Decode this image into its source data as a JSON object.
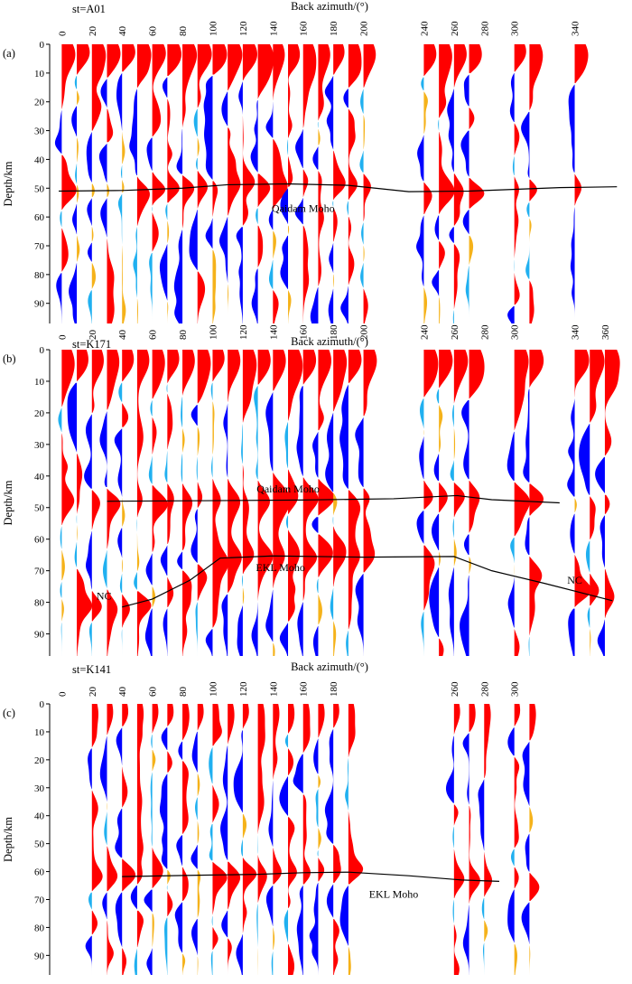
{
  "figure": {
    "xlabel": "Back azimuth/(°)",
    "ylabel": "Depth/km",
    "y_ticks": [
      0,
      10,
      20,
      30,
      40,
      50,
      60,
      70,
      80,
      90
    ],
    "colors": {
      "pos_strong": "#ff0000",
      "pos_weak": "#f5b21a",
      "neg_strong": "#0000ff",
      "neg_weak": "#20b0f0",
      "interface": "#000000",
      "frame": "#000000"
    }
  },
  "chart_data": [
    {
      "type": "receiver-function-section",
      "panel": "(a)",
      "station": "st=A01",
      "xlabel": "Back azimuth/(°)",
      "ylabel": "Depth/km",
      "xlim": [
        -8,
        372
      ],
      "ylim": [
        0,
        97
      ],
      "x_ticks": [
        0,
        20,
        40,
        60,
        80,
        100,
        120,
        140,
        160,
        180,
        200,
        240,
        260,
        280,
        300,
        340
      ],
      "y_ticks": [
        0,
        10,
        20,
        30,
        40,
        50,
        60,
        70,
        80,
        90
      ],
      "trace_azimuths": [
        0,
        10,
        20,
        30,
        40,
        50,
        60,
        70,
        80,
        90,
        100,
        110,
        120,
        130,
        140,
        150,
        160,
        170,
        180,
        190,
        200,
        240,
        250,
        260,
        270,
        300,
        310,
        340
      ],
      "interfaces": [
        {
          "label": "Qaidam Moho",
          "label_at": [
            160,
            57
          ],
          "points": [
            [
              -2,
              51
            ],
            [
              40,
              50.8
            ],
            [
              80,
              50
            ],
            [
              110,
              48.8
            ],
            [
              150,
              48.5
            ],
            [
              190,
              49
            ],
            [
              230,
              51.2
            ],
            [
              270,
              51
            ],
            [
              330,
              49.8
            ],
            [
              368,
              49.5
            ]
          ]
        }
      ]
    },
    {
      "type": "receiver-function-section",
      "panel": "(b)",
      "station": "st=K171",
      "xlabel": "Back azimuth/(°)",
      "ylabel": "Depth/km",
      "xlim": [
        -8,
        372
      ],
      "ylim": [
        0,
        97
      ],
      "x_ticks": [
        0,
        20,
        40,
        60,
        80,
        100,
        120,
        140,
        160,
        180,
        200,
        240,
        260,
        280,
        300,
        340,
        360
      ],
      "y_ticks": [
        0,
        10,
        20,
        30,
        40,
        50,
        60,
        70,
        80,
        90
      ],
      "trace_azimuths": [
        0,
        10,
        20,
        30,
        40,
        50,
        60,
        70,
        80,
        90,
        100,
        110,
        120,
        130,
        140,
        150,
        160,
        170,
        180,
        190,
        200,
        240,
        250,
        260,
        270,
        300,
        310,
        340,
        350,
        360
      ],
      "interfaces": [
        {
          "label": "Qaidam Moho",
          "label_at": [
            150,
            44
          ],
          "points": [
            [
              30,
              48
            ],
            [
              100,
              47.8
            ],
            [
              160,
              47.6
            ],
            [
              220,
              47.2
            ],
            [
              262,
              46.2
            ],
            [
              285,
              47.5
            ],
            [
              330,
              48.5
            ]
          ]
        },
        {
          "label": "EKL Moho",
          "label_at": [
            145,
            69
          ],
          "points": [
            [
              40,
              81.5
            ],
            [
              60,
              79
            ],
            [
              85,
              73
            ],
            [
              105,
              66
            ],
            [
              140,
              65.3
            ],
            [
              200,
              65.7
            ],
            [
              260,
              65.5
            ],
            [
              285,
              70
            ],
            [
              320,
              74
            ],
            [
              365,
              79.5
            ]
          ]
        }
      ],
      "annotations": [
        {
          "text": "NC",
          "at": [
            28,
            78
          ]
        },
        {
          "text": "NC",
          "at": [
            340,
            73
          ]
        }
      ]
    },
    {
      "type": "receiver-function-section",
      "panel": "(c)",
      "station": "st=K141",
      "xlabel": "Back azimuth/(°)",
      "ylabel": "Depth/km",
      "xlim": [
        -8,
        372
      ],
      "ylim": [
        0,
        97
      ],
      "x_ticks": [
        0,
        20,
        40,
        60,
        80,
        100,
        120,
        140,
        160,
        180,
        260,
        280,
        300
      ],
      "y_ticks": [
        0,
        10,
        20,
        30,
        40,
        50,
        60,
        70,
        80,
        90
      ],
      "trace_azimuths": [
        20,
        30,
        40,
        50,
        60,
        70,
        80,
        90,
        100,
        110,
        120,
        130,
        140,
        150,
        160,
        170,
        180,
        190,
        260,
        270,
        280,
        300,
        310
      ],
      "interfaces": [
        {
          "label": "EKL Moho",
          "label_at": [
            220,
            68
          ],
          "points": [
            [
              40,
              61.8
            ],
            [
              90,
              61.3
            ],
            [
              130,
              61
            ],
            [
              160,
              60.4
            ],
            [
              190,
              60.2
            ],
            [
              230,
              61.5
            ],
            [
              265,
              63
            ],
            [
              290,
              63.5
            ]
          ]
        }
      ]
    }
  ]
}
